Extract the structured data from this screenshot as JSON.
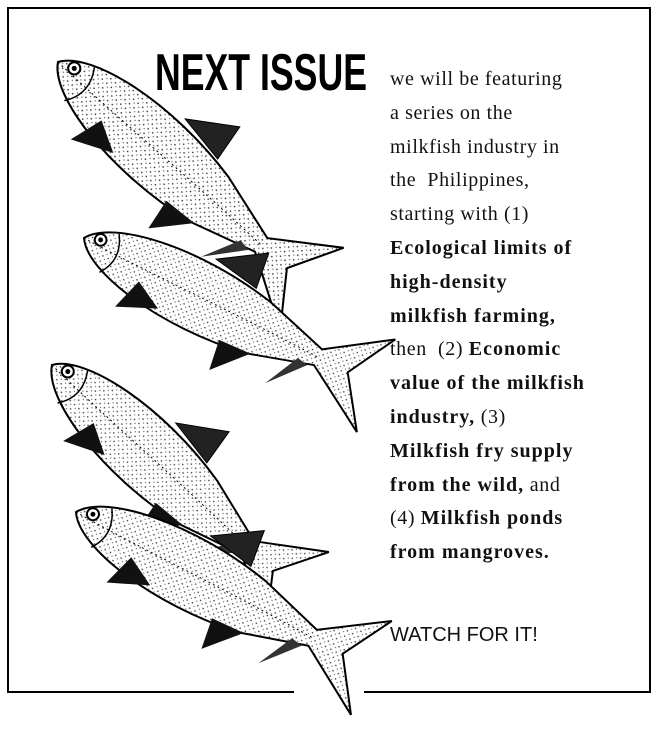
{
  "header": {
    "title": "NEXT ISSUE"
  },
  "body": {
    "lines": [
      [
        "we will be featuring"
      ],
      [
        "a series on the"
      ],
      [
        "milkfish industry in"
      ],
      [
        "the  Philippines,"
      ],
      [
        "starting with (1)"
      ],
      [
        "Ecological limits of"
      ],
      [
        "high-density"
      ],
      [
        "milkfish farming,"
      ],
      [
        "then  (2) ",
        "Economic"
      ],
      [
        "value of the milkfish"
      ],
      [
        "industry,",
        " (3)"
      ],
      [
        "Milkfish fry supply"
      ],
      [
        "from the wild,",
        " and"
      ],
      [
        "(4) ",
        "Milkfish ponds"
      ],
      [
        "from mangroves."
      ]
    ]
  },
  "footer": {
    "callout": "WATCH FOR IT!"
  }
}
